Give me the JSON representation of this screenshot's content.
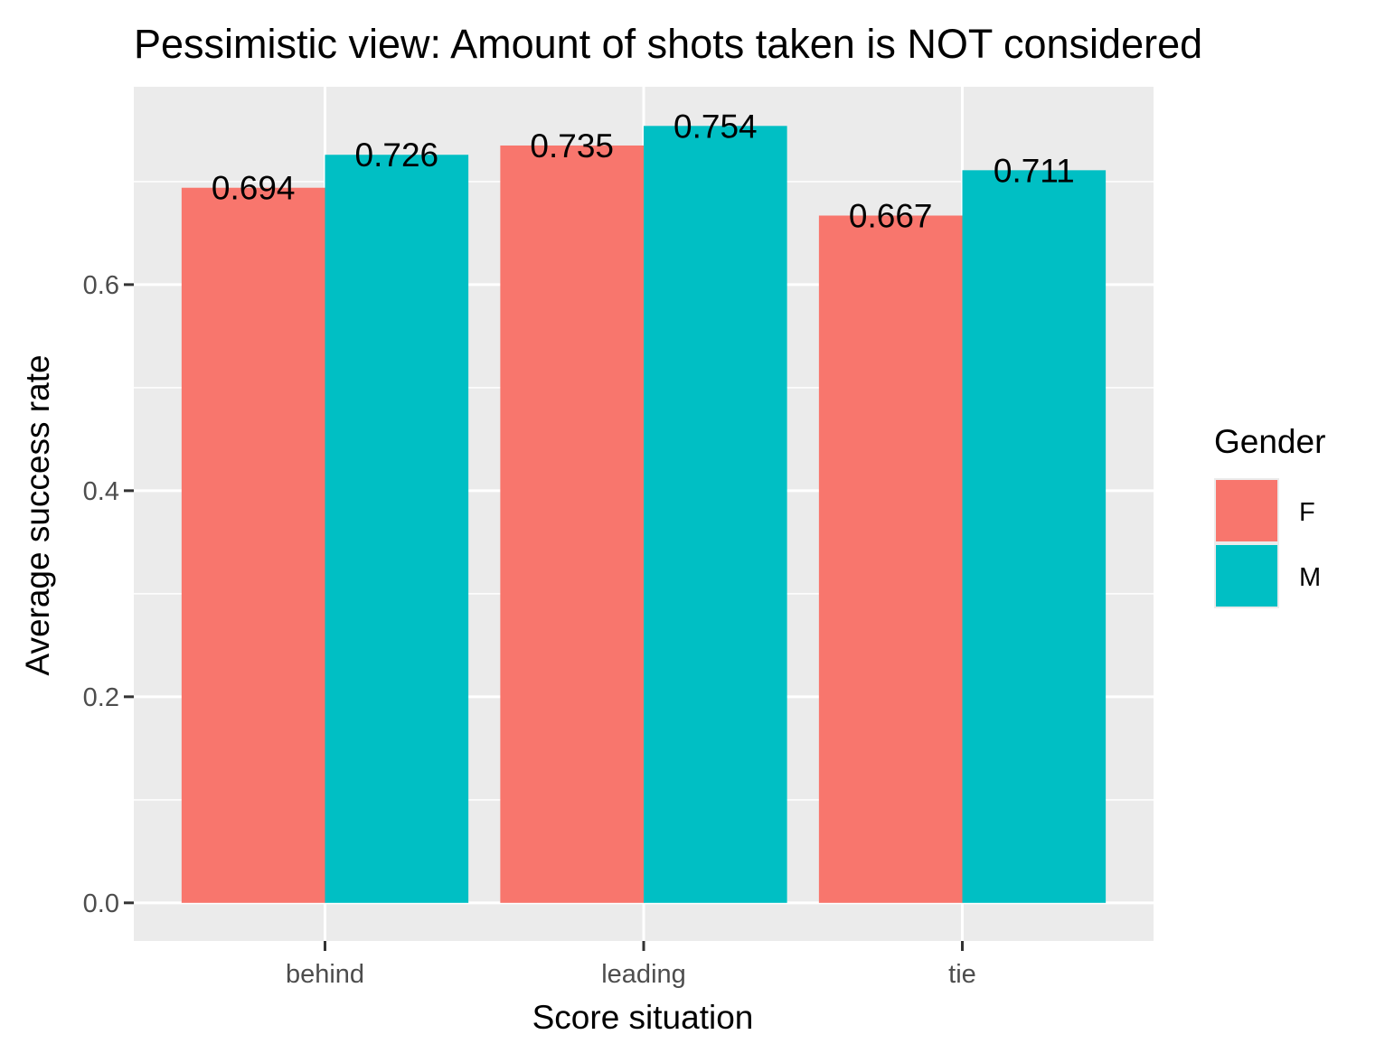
{
  "chart_data": {
    "type": "bar",
    "title": "Pessimistic view: Amount of shots taken is NOT considered",
    "xlabel": "Score situation",
    "ylabel": "Average success rate",
    "categories": [
      "behind",
      "leading",
      "tie"
    ],
    "series": [
      {
        "name": "F",
        "color": "#F8766D",
        "values": [
          0.694,
          0.735,
          0.667
        ],
        "labels": [
          "0.694",
          "0.735",
          "0.667"
        ]
      },
      {
        "name": "M",
        "color": "#00BFC4",
        "values": [
          0.726,
          0.754,
          0.711
        ],
        "labels": [
          "0.726",
          "0.754",
          "0.711"
        ]
      }
    ],
    "ylim": [
      -0.037,
      0.792
    ],
    "yticks": [
      0.0,
      0.2,
      0.4,
      0.6
    ],
    "ytick_labels": [
      "0.0",
      "0.2",
      "0.4",
      "0.6"
    ],
    "grid": true,
    "legend": {
      "title": "Gender",
      "placement": "right"
    },
    "colors": {
      "panel": "#EBEBEB",
      "grid": "#FFFFFF",
      "axis_text": "#4D4D4D",
      "tick": "#333333"
    }
  }
}
